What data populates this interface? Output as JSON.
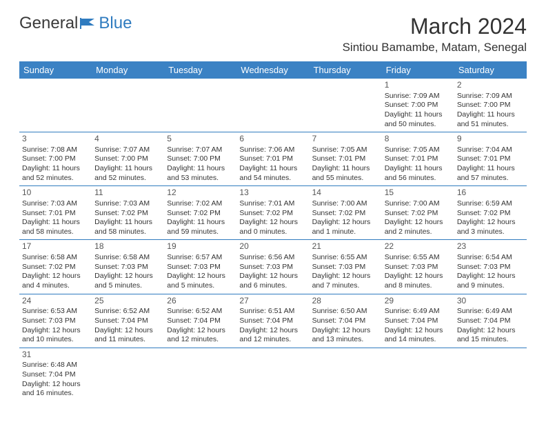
{
  "logo": {
    "text_left": "General",
    "text_right": "Blue"
  },
  "title": "March 2024",
  "location": "Sintiou Bamambe, Matam, Senegal",
  "colors": {
    "header_bg": "#3b82c4",
    "header_fg": "#ffffff",
    "row_border": "#2f7bbf",
    "text": "#333333",
    "logo_blue": "#2f7bbf"
  },
  "day_headers": [
    "Sunday",
    "Monday",
    "Tuesday",
    "Wednesday",
    "Thursday",
    "Friday",
    "Saturday"
  ],
  "weeks": [
    [
      null,
      null,
      null,
      null,
      null,
      {
        "day": "1",
        "sunrise": "Sunrise: 7:09 AM",
        "sunset": "Sunset: 7:00 PM",
        "daylight1": "Daylight: 11 hours",
        "daylight2": "and 50 minutes."
      },
      {
        "day": "2",
        "sunrise": "Sunrise: 7:09 AM",
        "sunset": "Sunset: 7:00 PM",
        "daylight1": "Daylight: 11 hours",
        "daylight2": "and 51 minutes."
      }
    ],
    [
      {
        "day": "3",
        "sunrise": "Sunrise: 7:08 AM",
        "sunset": "Sunset: 7:00 PM",
        "daylight1": "Daylight: 11 hours",
        "daylight2": "and 52 minutes."
      },
      {
        "day": "4",
        "sunrise": "Sunrise: 7:07 AM",
        "sunset": "Sunset: 7:00 PM",
        "daylight1": "Daylight: 11 hours",
        "daylight2": "and 52 minutes."
      },
      {
        "day": "5",
        "sunrise": "Sunrise: 7:07 AM",
        "sunset": "Sunset: 7:00 PM",
        "daylight1": "Daylight: 11 hours",
        "daylight2": "and 53 minutes."
      },
      {
        "day": "6",
        "sunrise": "Sunrise: 7:06 AM",
        "sunset": "Sunset: 7:01 PM",
        "daylight1": "Daylight: 11 hours",
        "daylight2": "and 54 minutes."
      },
      {
        "day": "7",
        "sunrise": "Sunrise: 7:05 AM",
        "sunset": "Sunset: 7:01 PM",
        "daylight1": "Daylight: 11 hours",
        "daylight2": "and 55 minutes."
      },
      {
        "day": "8",
        "sunrise": "Sunrise: 7:05 AM",
        "sunset": "Sunset: 7:01 PM",
        "daylight1": "Daylight: 11 hours",
        "daylight2": "and 56 minutes."
      },
      {
        "day": "9",
        "sunrise": "Sunrise: 7:04 AM",
        "sunset": "Sunset: 7:01 PM",
        "daylight1": "Daylight: 11 hours",
        "daylight2": "and 57 minutes."
      }
    ],
    [
      {
        "day": "10",
        "sunrise": "Sunrise: 7:03 AM",
        "sunset": "Sunset: 7:01 PM",
        "daylight1": "Daylight: 11 hours",
        "daylight2": "and 58 minutes."
      },
      {
        "day": "11",
        "sunrise": "Sunrise: 7:03 AM",
        "sunset": "Sunset: 7:02 PM",
        "daylight1": "Daylight: 11 hours",
        "daylight2": "and 58 minutes."
      },
      {
        "day": "12",
        "sunrise": "Sunrise: 7:02 AM",
        "sunset": "Sunset: 7:02 PM",
        "daylight1": "Daylight: 11 hours",
        "daylight2": "and 59 minutes."
      },
      {
        "day": "13",
        "sunrise": "Sunrise: 7:01 AM",
        "sunset": "Sunset: 7:02 PM",
        "daylight1": "Daylight: 12 hours",
        "daylight2": "and 0 minutes."
      },
      {
        "day": "14",
        "sunrise": "Sunrise: 7:00 AM",
        "sunset": "Sunset: 7:02 PM",
        "daylight1": "Daylight: 12 hours",
        "daylight2": "and 1 minute."
      },
      {
        "day": "15",
        "sunrise": "Sunrise: 7:00 AM",
        "sunset": "Sunset: 7:02 PM",
        "daylight1": "Daylight: 12 hours",
        "daylight2": "and 2 minutes."
      },
      {
        "day": "16",
        "sunrise": "Sunrise: 6:59 AM",
        "sunset": "Sunset: 7:02 PM",
        "daylight1": "Daylight: 12 hours",
        "daylight2": "and 3 minutes."
      }
    ],
    [
      {
        "day": "17",
        "sunrise": "Sunrise: 6:58 AM",
        "sunset": "Sunset: 7:02 PM",
        "daylight1": "Daylight: 12 hours",
        "daylight2": "and 4 minutes."
      },
      {
        "day": "18",
        "sunrise": "Sunrise: 6:58 AM",
        "sunset": "Sunset: 7:03 PM",
        "daylight1": "Daylight: 12 hours",
        "daylight2": "and 5 minutes."
      },
      {
        "day": "19",
        "sunrise": "Sunrise: 6:57 AM",
        "sunset": "Sunset: 7:03 PM",
        "daylight1": "Daylight: 12 hours",
        "daylight2": "and 5 minutes."
      },
      {
        "day": "20",
        "sunrise": "Sunrise: 6:56 AM",
        "sunset": "Sunset: 7:03 PM",
        "daylight1": "Daylight: 12 hours",
        "daylight2": "and 6 minutes."
      },
      {
        "day": "21",
        "sunrise": "Sunrise: 6:55 AM",
        "sunset": "Sunset: 7:03 PM",
        "daylight1": "Daylight: 12 hours",
        "daylight2": "and 7 minutes."
      },
      {
        "day": "22",
        "sunrise": "Sunrise: 6:55 AM",
        "sunset": "Sunset: 7:03 PM",
        "daylight1": "Daylight: 12 hours",
        "daylight2": "and 8 minutes."
      },
      {
        "day": "23",
        "sunrise": "Sunrise: 6:54 AM",
        "sunset": "Sunset: 7:03 PM",
        "daylight1": "Daylight: 12 hours",
        "daylight2": "and 9 minutes."
      }
    ],
    [
      {
        "day": "24",
        "sunrise": "Sunrise: 6:53 AM",
        "sunset": "Sunset: 7:03 PM",
        "daylight1": "Daylight: 12 hours",
        "daylight2": "and 10 minutes."
      },
      {
        "day": "25",
        "sunrise": "Sunrise: 6:52 AM",
        "sunset": "Sunset: 7:04 PM",
        "daylight1": "Daylight: 12 hours",
        "daylight2": "and 11 minutes."
      },
      {
        "day": "26",
        "sunrise": "Sunrise: 6:52 AM",
        "sunset": "Sunset: 7:04 PM",
        "daylight1": "Daylight: 12 hours",
        "daylight2": "and 12 minutes."
      },
      {
        "day": "27",
        "sunrise": "Sunrise: 6:51 AM",
        "sunset": "Sunset: 7:04 PM",
        "daylight1": "Daylight: 12 hours",
        "daylight2": "and 12 minutes."
      },
      {
        "day": "28",
        "sunrise": "Sunrise: 6:50 AM",
        "sunset": "Sunset: 7:04 PM",
        "daylight1": "Daylight: 12 hours",
        "daylight2": "and 13 minutes."
      },
      {
        "day": "29",
        "sunrise": "Sunrise: 6:49 AM",
        "sunset": "Sunset: 7:04 PM",
        "daylight1": "Daylight: 12 hours",
        "daylight2": "and 14 minutes."
      },
      {
        "day": "30",
        "sunrise": "Sunrise: 6:49 AM",
        "sunset": "Sunset: 7:04 PM",
        "daylight1": "Daylight: 12 hours",
        "daylight2": "and 15 minutes."
      }
    ],
    [
      {
        "day": "31",
        "sunrise": "Sunrise: 6:48 AM",
        "sunset": "Sunset: 7:04 PM",
        "daylight1": "Daylight: 12 hours",
        "daylight2": "and 16 minutes."
      },
      null,
      null,
      null,
      null,
      null,
      null
    ]
  ]
}
